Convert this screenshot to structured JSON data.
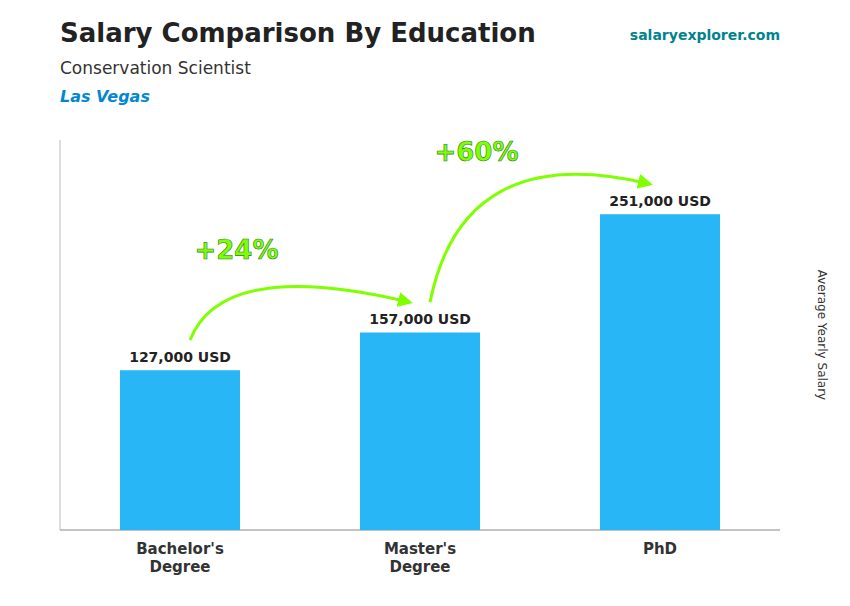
{
  "chart_data": {
    "type": "bar",
    "title": "Salary Comparison By Education",
    "subtitle": "Conservation Scientist",
    "ylabel": "Average Yearly Salary",
    "categories": [
      "Bachelor's\nDegree",
      "Master's\nDegree",
      "PhD"
    ],
    "values": [
      127000,
      157000,
      251000
    ],
    "value_labels": [
      "127,000 USD",
      "157,000 USD",
      "251,000 USD"
    ],
    "color": "#29b6f6",
    "ylim": [
      0,
      310000
    ],
    "data_labels": true,
    "tick_labels": "x",
    "grid": false,
    "annotations": [
      {
        "text": "Las Vegas"
      },
      {
        "text": "salaryexplorer.com"
      },
      {
        "text": "+24%",
        "between": [
          0,
          1
        ],
        "color": "#7fff00"
      },
      {
        "text": "+60%",
        "between": [
          1,
          2
        ],
        "color": "#7fff00"
      }
    ]
  }
}
